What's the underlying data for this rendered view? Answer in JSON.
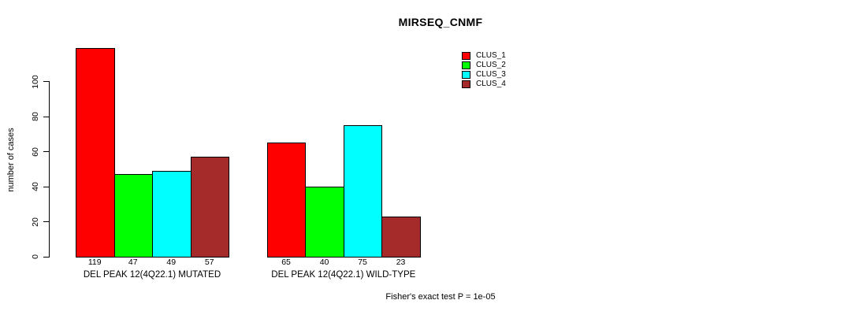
{
  "chart_data": {
    "type": "bar",
    "title": "MIRSEQ_CNMF",
    "ylabel": "number of cases",
    "xlabel": "",
    "ylim": [
      0,
      120
    ],
    "yticks": [
      0,
      20,
      40,
      60,
      80,
      100
    ],
    "grid": false,
    "legend_position": "top-right",
    "categories": [
      "DEL PEAK 12(4Q22.1) MUTATED",
      "DEL PEAK 12(4Q22.1) WILD-TYPE"
    ],
    "series": [
      {
        "name": "CLUS_1",
        "color": "#ff0000",
        "values": [
          119,
          65
        ]
      },
      {
        "name": "CLUS_2",
        "color": "#00ff00",
        "values": [
          47,
          40
        ]
      },
      {
        "name": "CLUS_3",
        "color": "#00ffff",
        "values": [
          49,
          75
        ]
      },
      {
        "name": "CLUS_4",
        "color": "#a52a2a",
        "values": [
          57,
          23
        ]
      }
    ],
    "bar_value_labels": [
      [
        119,
        47,
        49,
        57
      ],
      [
        65,
        40,
        75,
        23
      ]
    ],
    "annotation": "Fisher's exact test P = 1e-05"
  }
}
